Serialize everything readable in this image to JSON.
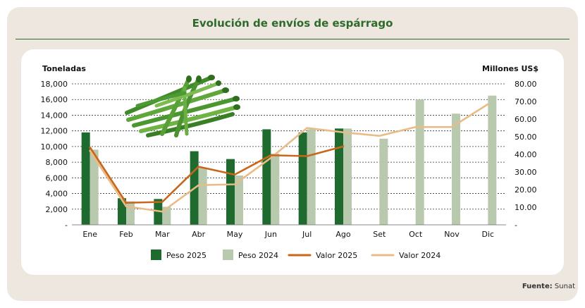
{
  "title": "Evolución de envíos de espárrago",
  "source_label": "Fuente:",
  "source_value": "Sunat",
  "colors": {
    "peso_2025": "#1f6b2f",
    "peso_2024": "#b9c9ad",
    "valor_2025": "#c8661a",
    "valor_2024": "#e9bb87",
    "title": "#2e6b2a"
  },
  "chart_data": {
    "type": "bar",
    "categories": [
      "Ene",
      "Feb",
      "Mar",
      "Abr",
      "May",
      "Jun",
      "Jul",
      "Ago",
      "Set",
      "Oct",
      "Nov",
      "Dic"
    ],
    "ylabel": "Toneladas",
    "y2label": "Millones US$",
    "ylim": [
      0,
      18000
    ],
    "y2lim": [
      0,
      80
    ],
    "y_ticks": [
      "-",
      "2,000",
      "4,000",
      "6,000",
      "8,000",
      "10,000",
      "12,000",
      "14,000",
      "16,000",
      "18,000"
    ],
    "y2_ticks": [
      "-",
      "10.00",
      "20.00",
      "30.00",
      "40.00",
      "50.00",
      "60.00",
      "70.00",
      "80.00"
    ],
    "grid": true,
    "legend_position": "bottom",
    "series": [
      {
        "name": "Peso 2025",
        "type": "bar",
        "axis": "left",
        "values": [
          11800,
          3400,
          3300,
          9400,
          8400,
          12200,
          11800,
          12300,
          null,
          null,
          null,
          null
        ]
      },
      {
        "name": "Peso 2024",
        "type": "bar",
        "axis": "left",
        "values": [
          9600,
          3000,
          2300,
          7300,
          6300,
          9100,
          12200,
          12300,
          11000,
          16000,
          14200,
          16500
        ]
      },
      {
        "name": "Valor 2025",
        "type": "line",
        "axis": "right",
        "values": [
          44,
          12.5,
          13,
          33,
          28.5,
          39.5,
          39,
          44.5,
          null,
          null,
          null,
          null
        ]
      },
      {
        "name": "Valor 2024",
        "type": "line",
        "axis": "right",
        "values": [
          42,
          10.5,
          7.5,
          22.5,
          23,
          38,
          55,
          52.5,
          50.5,
          55.5,
          55.5,
          68.5
        ]
      }
    ]
  }
}
